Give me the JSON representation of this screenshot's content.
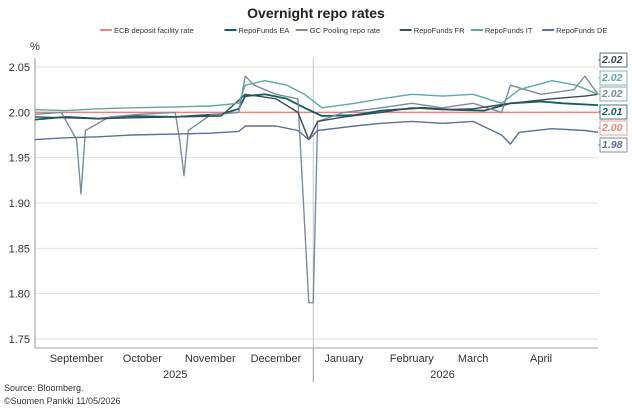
{
  "chart_data": {
    "type": "line",
    "title": "Overnight repo rates",
    "ylabel": "%",
    "ylim": [
      1.74,
      2.06
    ],
    "yticks": [
      "1.75",
      "1.80",
      "1.85",
      "1.90",
      "1.95",
      "2.00",
      "2.05"
    ],
    "xlim": [
      "2025-08-27",
      "2026-05-11"
    ],
    "months": [
      {
        "label": "September",
        "date": "2025-09-15"
      },
      {
        "label": "October",
        "date": "2025-10-15"
      },
      {
        "label": "November",
        "date": "2025-11-15"
      },
      {
        "label": "December",
        "date": "2025-12-15"
      },
      {
        "label": "January",
        "date": "2026-01-15"
      },
      {
        "label": "February",
        "date": "2026-02-15"
      },
      {
        "label": "March",
        "date": "2026-03-15"
      },
      {
        "label": "April",
        "date": "2026-04-15"
      }
    ],
    "years": [
      {
        "label": "2025",
        "date": "2025-10-30"
      },
      {
        "label": "2026",
        "date": "2026-03-01"
      }
    ],
    "year_divider": "2026-01-01",
    "grid": "horizontal",
    "legend_position": "top",
    "series": [
      {
        "name": "ECB deposit facility rate",
        "color": "#e8847c",
        "end_label": "2.00",
        "points": [
          [
            "2025-08-27",
            2.0
          ],
          [
            "2026-05-11",
            2.0
          ]
        ]
      },
      {
        "name": "RepoFunds EA",
        "color": "#0d5f64",
        "end_label": "2.01",
        "points": [
          [
            "2025-08-27",
            1.992
          ],
          [
            "2025-09-10",
            1.995
          ],
          [
            "2025-09-25",
            1.993
          ],
          [
            "2025-10-10",
            1.996
          ],
          [
            "2025-10-30",
            1.995
          ],
          [
            "2025-11-20",
            1.998
          ],
          [
            "2025-11-28",
            2.004
          ],
          [
            "2025-12-01",
            2.018
          ],
          [
            "2025-12-10",
            2.02
          ],
          [
            "2025-12-20",
            2.015
          ],
          [
            "2025-12-28",
            2.005
          ],
          [
            "2026-01-05",
            1.996
          ],
          [
            "2026-01-20",
            1.997
          ],
          [
            "2026-02-01",
            2.002
          ],
          [
            "2026-02-20",
            2.005
          ],
          [
            "2026-03-05",
            2.003
          ],
          [
            "2026-03-20",
            2.002
          ],
          [
            "2026-04-01",
            2.01
          ],
          [
            "2026-04-15",
            2.012
          ],
          [
            "2026-04-25",
            2.01
          ],
          [
            "2026-05-11",
            2.008
          ]
        ]
      },
      {
        "name": "GC Pooling repo rate",
        "color": "#7c8ca0",
        "end_label": "2.02",
        "points": [
          [
            "2025-08-27",
            1.998
          ],
          [
            "2025-09-08",
            2.0
          ],
          [
            "2025-09-15",
            1.97
          ],
          [
            "2025-09-17",
            1.91
          ],
          [
            "2025-09-19",
            1.98
          ],
          [
            "2025-09-30",
            1.995
          ],
          [
            "2025-10-15",
            1.998
          ],
          [
            "2025-10-30",
            2.0
          ],
          [
            "2025-11-01",
            1.97
          ],
          [
            "2025-11-03",
            1.93
          ],
          [
            "2025-11-05",
            1.98
          ],
          [
            "2025-11-15",
            1.997
          ],
          [
            "2025-11-28",
            2.0
          ],
          [
            "2025-12-01",
            2.04
          ],
          [
            "2025-12-05",
            2.03
          ],
          [
            "2025-12-15",
            2.02
          ],
          [
            "2025-12-25",
            2.015
          ],
          [
            "2025-12-30",
            1.79
          ],
          [
            "2026-01-01",
            1.79
          ],
          [
            "2026-01-03",
            1.99
          ],
          [
            "2026-01-15",
            2.0
          ],
          [
            "2026-02-01",
            2.005
          ],
          [
            "2026-02-15",
            2.01
          ],
          [
            "2026-03-01",
            2.005
          ],
          [
            "2026-03-15",
            2.01
          ],
          [
            "2026-03-28",
            2.0
          ],
          [
            "2026-04-01",
            2.03
          ],
          [
            "2026-04-15",
            2.02
          ],
          [
            "2026-04-30",
            2.025
          ],
          [
            "2026-05-05",
            2.04
          ],
          [
            "2026-05-11",
            2.02
          ]
        ]
      },
      {
        "name": "RepoFunds FR",
        "color": "#3d4a56",
        "end_label": "2.02",
        "points": [
          [
            "2025-08-27",
            1.995
          ],
          [
            "2025-09-10",
            1.994
          ],
          [
            "2025-09-25",
            1.993
          ],
          [
            "2025-10-10",
            1.994
          ],
          [
            "2025-10-30",
            1.995
          ],
          [
            "2025-11-20",
            1.996
          ],
          [
            "2025-12-01",
            2.02
          ],
          [
            "2025-12-15",
            2.015
          ],
          [
            "2025-12-25",
            2.0
          ],
          [
            "2025-12-30",
            1.97
          ],
          [
            "2026-01-03",
            1.99
          ],
          [
            "2026-01-15",
            1.995
          ],
          [
            "2026-02-01",
            2.0
          ],
          [
            "2026-02-15",
            2.005
          ],
          [
            "2026-03-01",
            2.003
          ],
          [
            "2026-03-15",
            2.004
          ],
          [
            "2026-04-01",
            2.01
          ],
          [
            "2026-04-20",
            2.015
          ],
          [
            "2026-05-05",
            2.018
          ],
          [
            "2026-05-11",
            2.02
          ]
        ]
      },
      {
        "name": "RepoFunds IT",
        "color": "#5fa8a6",
        "end_label": "2.02",
        "points": [
          [
            "2025-08-27",
            2.003
          ],
          [
            "2025-09-10",
            2.002
          ],
          [
            "2025-09-25",
            2.004
          ],
          [
            "2025-10-10",
            2.005
          ],
          [
            "2025-10-30",
            2.006
          ],
          [
            "2025-11-15",
            2.007
          ],
          [
            "2025-11-28",
            2.01
          ],
          [
            "2025-12-01",
            2.03
          ],
          [
            "2025-12-10",
            2.035
          ],
          [
            "2025-12-20",
            2.03
          ],
          [
            "2025-12-28",
            2.02
          ],
          [
            "2026-01-05",
            2.005
          ],
          [
            "2026-01-20",
            2.01
          ],
          [
            "2026-02-01",
            2.015
          ],
          [
            "2026-02-15",
            2.02
          ],
          [
            "2026-03-01",
            2.018
          ],
          [
            "2026-03-15",
            2.02
          ],
          [
            "2026-03-28",
            2.01
          ],
          [
            "2026-04-05",
            2.025
          ],
          [
            "2026-04-20",
            2.035
          ],
          [
            "2026-05-01",
            2.03
          ],
          [
            "2026-05-11",
            2.02
          ]
        ]
      },
      {
        "name": "RepoFunds DE",
        "color": "#5a6f9c",
        "end_label": "1.98",
        "points": [
          [
            "2025-08-27",
            1.97
          ],
          [
            "2025-09-10",
            1.972
          ],
          [
            "2025-09-25",
            1.973
          ],
          [
            "2025-10-10",
            1.975
          ],
          [
            "2025-10-30",
            1.976
          ],
          [
            "2025-11-15",
            1.977
          ],
          [
            "2025-11-28",
            1.979
          ],
          [
            "2025-12-01",
            1.985
          ],
          [
            "2025-12-15",
            1.985
          ],
          [
            "2025-12-25",
            1.98
          ],
          [
            "2025-12-30",
            1.97
          ],
          [
            "2026-01-03",
            1.98
          ],
          [
            "2026-01-20",
            1.985
          ],
          [
            "2026-02-01",
            1.988
          ],
          [
            "2026-02-15",
            1.99
          ],
          [
            "2026-03-01",
            1.988
          ],
          [
            "2026-03-15",
            1.99
          ],
          [
            "2026-03-28",
            1.975
          ],
          [
            "2026-04-01",
            1.965
          ],
          [
            "2026-04-05",
            1.978
          ],
          [
            "2026-04-20",
            1.982
          ],
          [
            "2026-05-05",
            1.98
          ],
          [
            "2026-05-11",
            1.978
          ]
        ]
      }
    ]
  },
  "footer": {
    "source": "Source: Bloomberg.",
    "credit": "©Suomen Pankki 11/05/2026"
  }
}
